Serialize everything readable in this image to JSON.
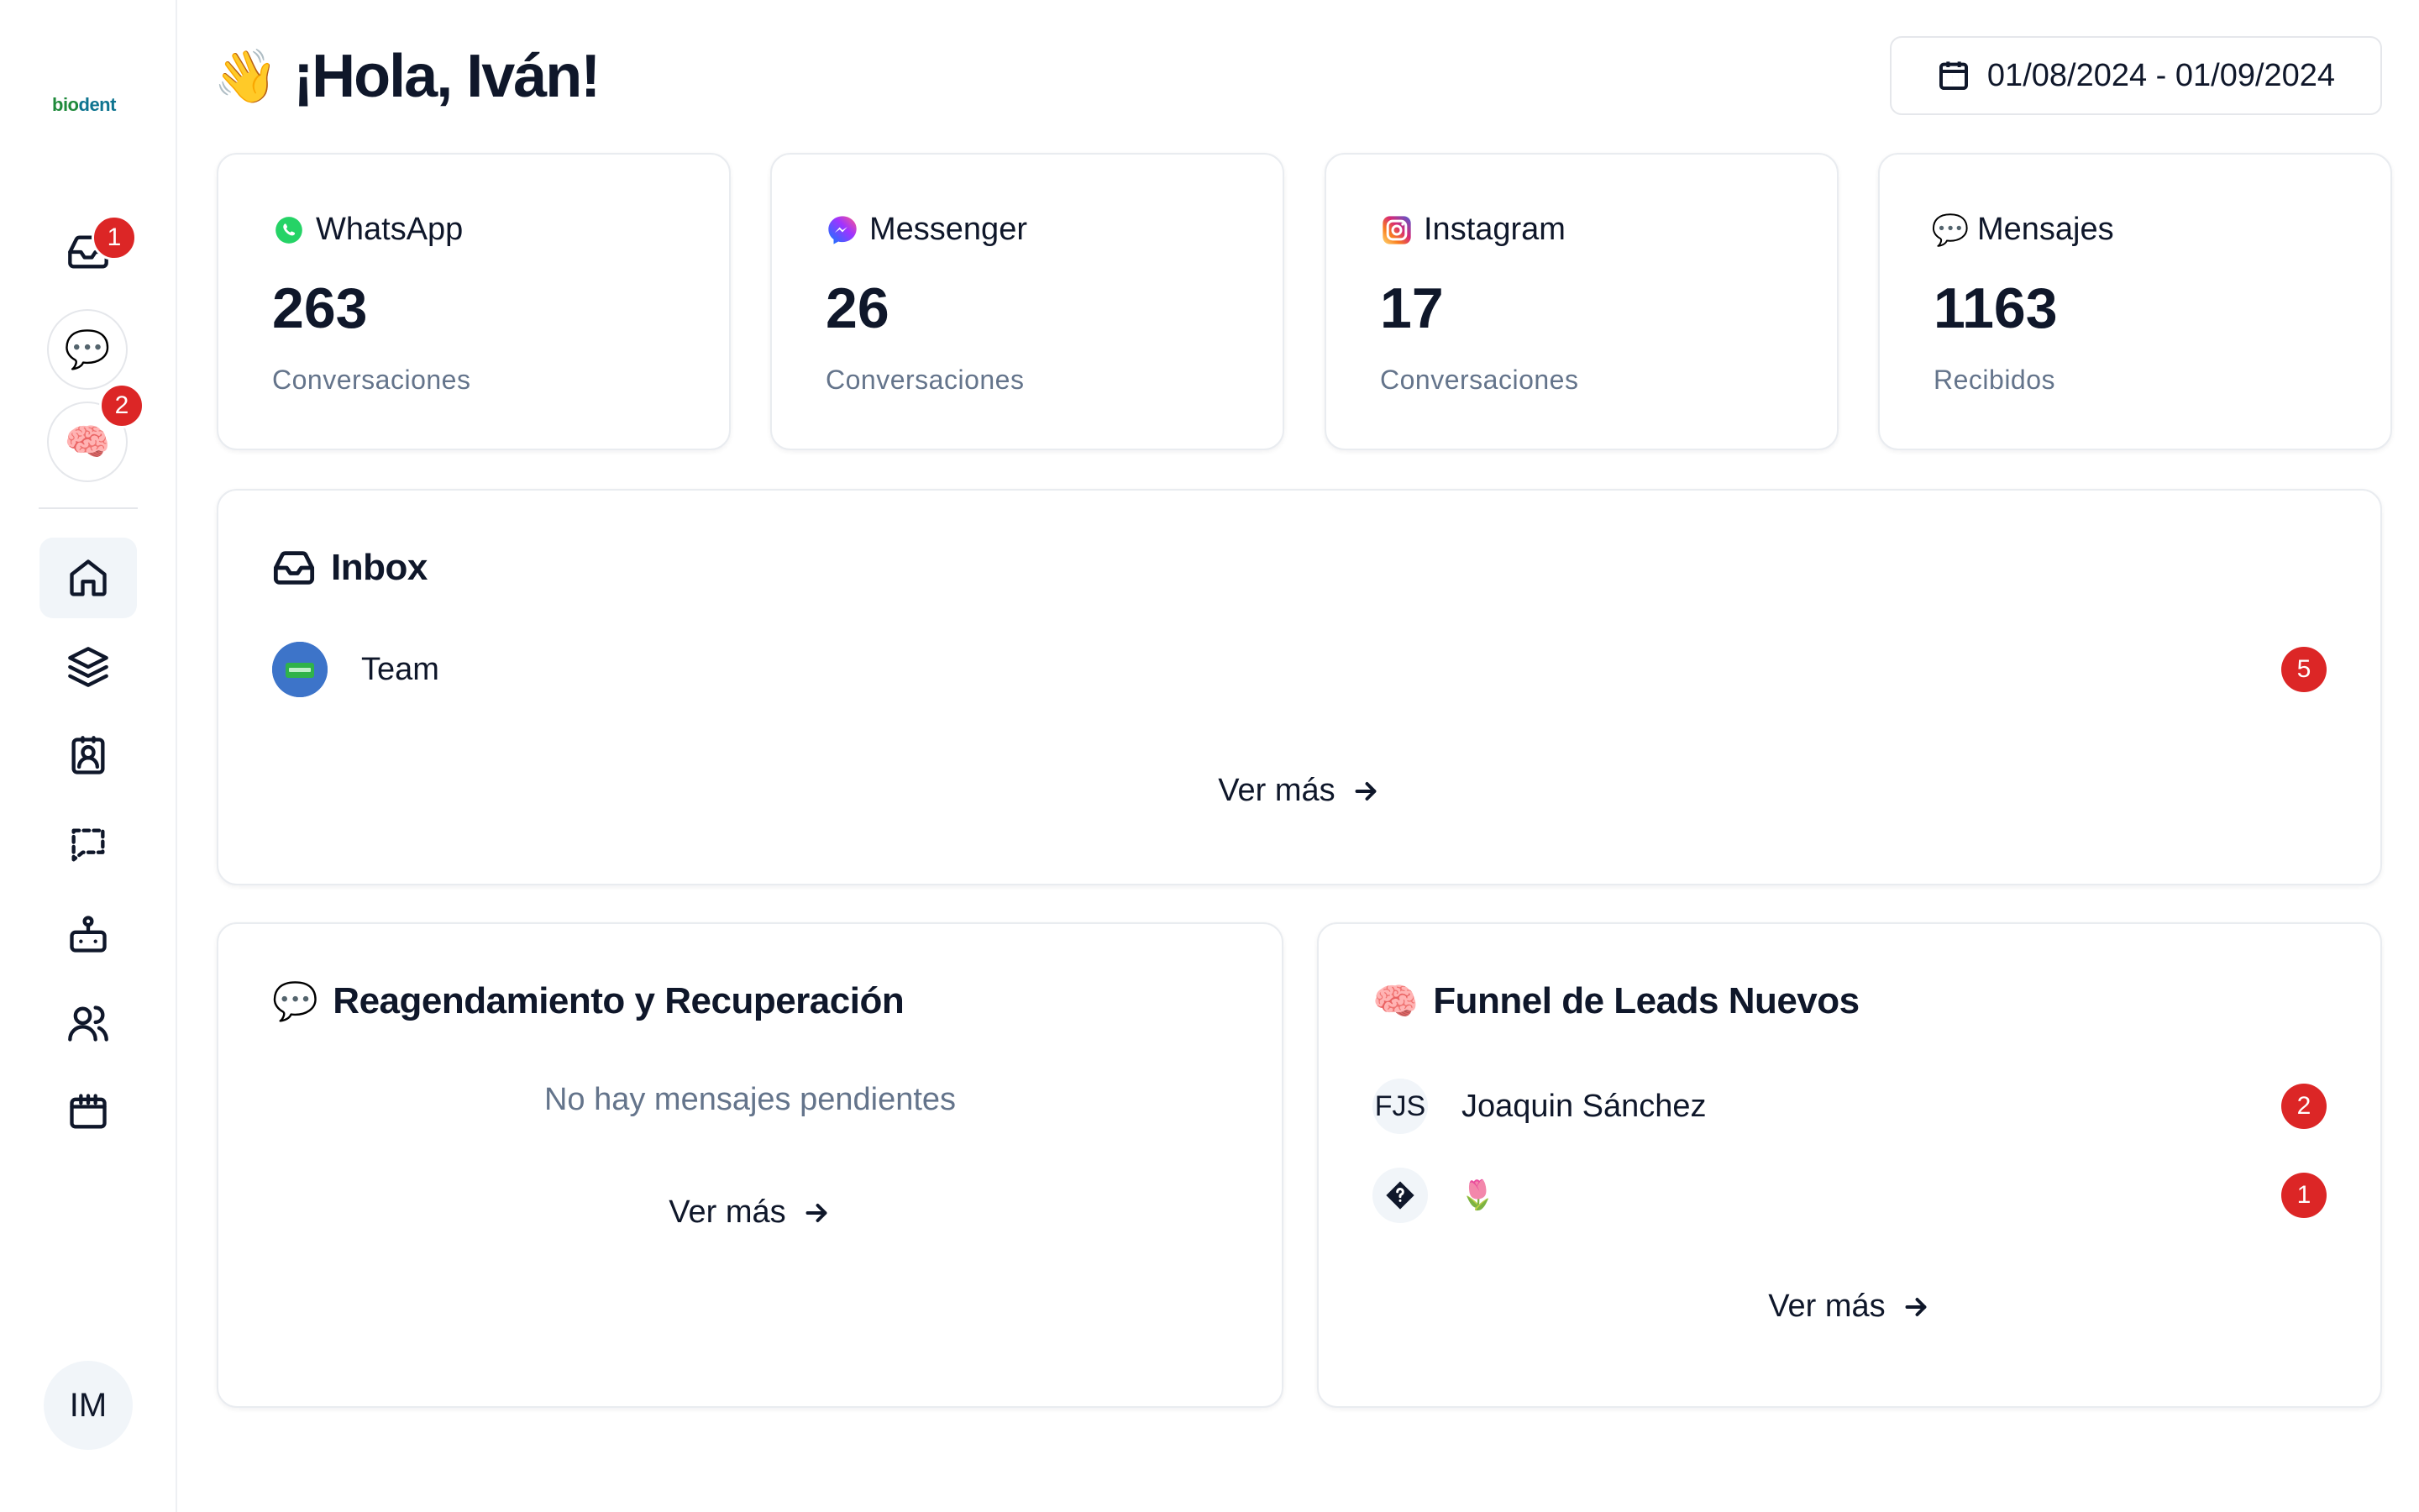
{
  "brand": {
    "logo_text_a": "bio",
    "logo_text_b": "dent"
  },
  "sidebar": {
    "top_items": [
      {
        "name": "inbox",
        "badge": "1"
      },
      {
        "name": "chat",
        "badge": ""
      },
      {
        "name": "brain",
        "badge": "2"
      }
    ],
    "nav": [
      "home",
      "layers",
      "contacts",
      "messages",
      "bot",
      "users",
      "calendar"
    ],
    "user_initials": "IM"
  },
  "header": {
    "greeting": "¡Hola, Iván!",
    "date_range": "01/08/2024 - 01/09/2024"
  },
  "stats": [
    {
      "label": "WhatsApp",
      "value": "263",
      "sub": "Conversaciones"
    },
    {
      "label": "Messenger",
      "value": "26",
      "sub": "Conversaciones"
    },
    {
      "label": "Instagram",
      "value": "17",
      "sub": "Conversaciones"
    },
    {
      "label": "Mensajes",
      "value": "1163",
      "sub": "Recibidos"
    }
  ],
  "inbox": {
    "title": "Inbox",
    "rows": [
      {
        "name": "Team",
        "count": "5"
      }
    ],
    "more": "Ver más"
  },
  "reag": {
    "title": "Reagendamiento y Recuperación",
    "empty": "No hay mensajes pendientes",
    "more": "Ver más"
  },
  "funnel": {
    "title": "Funnel de Leads Nuevos",
    "rows": [
      {
        "initials": "FJS",
        "name": "Joaquin Sánchez",
        "count": "2"
      },
      {
        "initials": "",
        "name": "🌷",
        "count": "1"
      }
    ],
    "more": "Ver más"
  },
  "colors": {
    "badge": "#dc2626",
    "muted": "#64748b",
    "text": "#0f172a",
    "whatsapp": "#25d366",
    "brand_green": "#1f8a3b"
  }
}
